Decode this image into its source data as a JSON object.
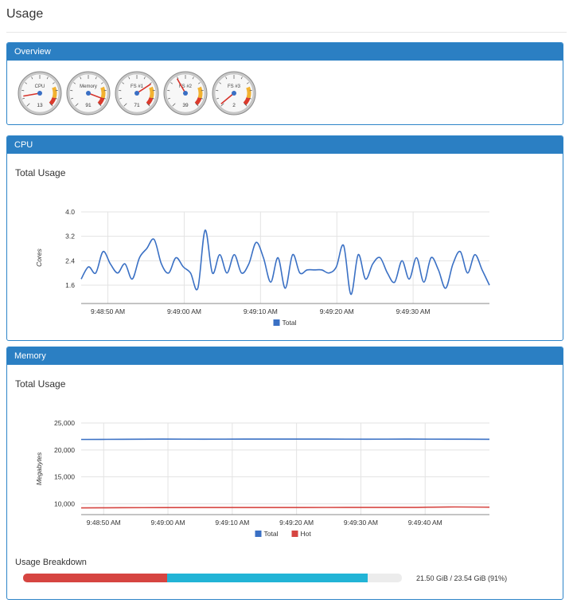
{
  "page": {
    "title": "Usage"
  },
  "overview": {
    "header": "Overview",
    "gauges": [
      {
        "label": "CPU",
        "value": 13
      },
      {
        "label": "Memory",
        "value": 91
      },
      {
        "label": "FS #1",
        "value": 71
      },
      {
        "label": "FS #2",
        "value": 39
      },
      {
        "label": "FS #3",
        "value": 2
      }
    ]
  },
  "cpu": {
    "header": "CPU",
    "subtitle": "Total Usage"
  },
  "memory": {
    "header": "Memory",
    "subtitle": "Total Usage",
    "breakdown": {
      "title": "Usage Breakdown",
      "segments": [
        {
          "name": "hot",
          "fraction": 0.38,
          "color": "#d64541"
        },
        {
          "name": "total",
          "fraction": 0.53,
          "color": "#22b4d6"
        }
      ],
      "label": "21.50 GiB / 23.54 GiB (91%)"
    }
  },
  "chart_data": [
    {
      "type": "line",
      "title": "Total Usage",
      "ylabel": "Cores",
      "ylim": [
        1.0,
        4.0
      ],
      "yticks": [
        "4.0",
        "3.2",
        "2.4",
        "1.6"
      ],
      "xticks": [
        "9:48:50 AM",
        "9:49:00 AM",
        "9:49:10 AM",
        "9:49:20 AM",
        "9:49:30 AM"
      ],
      "grid": true,
      "legend": "bottom",
      "series": [
        {
          "name": "Total",
          "color": "#3a70c4",
          "values": [
            1.8,
            2.2,
            2.0,
            2.7,
            2.3,
            2.0,
            2.3,
            1.8,
            2.5,
            2.8,
            3.1,
            2.3,
            2.0,
            2.5,
            2.2,
            2.0,
            1.5,
            3.4,
            2.0,
            2.6,
            2.0,
            2.6,
            2.0,
            2.3,
            3.0,
            2.5,
            1.7,
            2.5,
            1.5,
            2.6,
            2.0,
            2.1,
            2.1,
            2.1,
            2.0,
            2.2,
            2.9,
            1.3,
            2.6,
            1.8,
            2.3,
            2.5,
            2.0,
            1.7,
            2.4,
            1.8,
            2.5,
            1.7,
            2.5,
            2.1,
            1.5,
            2.3,
            2.7,
            2.0,
            2.6,
            2.1,
            1.6
          ]
        }
      ]
    },
    {
      "type": "line",
      "title": "Total Usage",
      "ylabel": "Megabytes",
      "ylim": [
        8000,
        25000
      ],
      "yticks": [
        "25,000",
        "20,000",
        "15,000",
        "10,000"
      ],
      "xticks": [
        "9:48:50 AM",
        "9:49:00 AM",
        "9:49:10 AM",
        "9:49:20 AM",
        "9:49:30 AM",
        "9:49:40 AM"
      ],
      "grid": true,
      "legend": "bottom",
      "series": [
        {
          "name": "Total",
          "color": "#3a70c4",
          "values": [
            21950,
            21980,
            22010,
            22000,
            22010,
            22020,
            22010,
            22000,
            22010,
            22000,
            21990
          ]
        },
        {
          "name": "Hot",
          "color": "#d64541",
          "values": [
            9250,
            9280,
            9300,
            9310,
            9320,
            9310,
            9330,
            9350,
            9340,
            9420,
            9380
          ]
        }
      ]
    }
  ]
}
